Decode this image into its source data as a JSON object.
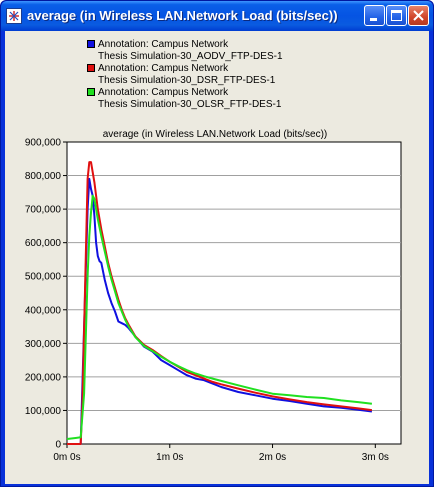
{
  "window": {
    "title": "average (in Wireless LAN.Network Load (bits/sec))",
    "buttons": {
      "minimize": "minimize-icon",
      "maximize": "maximize-icon",
      "close": "close-icon"
    }
  },
  "legend": [
    {
      "line1": "Annotation: Campus Network",
      "line2": "Thesis Simulation-30_AODV_FTP-DES-1",
      "color": "#1010e0"
    },
    {
      "line1": "Annotation: Campus Network",
      "line2": "Thesis Simulation-30_DSR_FTP-DES-1",
      "color": "#e01010"
    },
    {
      "line1": "Annotation: Campus Network",
      "line2": "Thesis Simulation-30_OLSR_FTP-DES-1",
      "color": "#20e020"
    }
  ],
  "chart_data": {
    "type": "line",
    "title": "average (in Wireless LAN.Network Load (bits/sec))",
    "xlabel": "",
    "ylabel": "",
    "xlim": [
      0,
      195
    ],
    "ylim": [
      0,
      900000
    ],
    "grid": true,
    "legend_position": "top",
    "yticks": [
      {
        "value": 0,
        "label": "0"
      },
      {
        "value": 100000,
        "label": "100,000"
      },
      {
        "value": 200000,
        "label": "200,000"
      },
      {
        "value": 300000,
        "label": "300,000"
      },
      {
        "value": 400000,
        "label": "400,000"
      },
      {
        "value": 500000,
        "label": "500,000"
      },
      {
        "value": 600000,
        "label": "600,000"
      },
      {
        "value": 700000,
        "label": "700,000"
      },
      {
        "value": 800000,
        "label": "800,000"
      },
      {
        "value": 900000,
        "label": "900,000"
      }
    ],
    "xticks": [
      {
        "value": 0,
        "label": "0m 0s"
      },
      {
        "value": 60,
        "label": "1m 0s"
      },
      {
        "value": 120,
        "label": "2m 0s"
      },
      {
        "value": 180,
        "label": "3m 0s"
      }
    ],
    "series": [
      {
        "color": "#1010e0",
        "x": [
          0,
          8,
          10,
          12,
          13,
          14,
          15,
          16,
          17,
          18,
          19,
          20,
          22,
          24,
          26,
          28,
          30,
          32,
          34,
          36,
          40,
          45,
          50,
          55,
          60,
          65,
          70,
          75,
          80,
          85,
          90,
          100,
          110,
          120,
          130,
          140,
          150,
          160,
          170,
          178
        ],
        "y": [
          0,
          0,
          350000,
          700000,
          790000,
          760000,
          740000,
          680000,
          600000,
          560000,
          545000,
          540000,
          490000,
          450000,
          420000,
          395000,
          365000,
          360000,
          355000,
          345000,
          320000,
          290000,
          275000,
          250000,
          235000,
          220000,
          205000,
          195000,
          190000,
          180000,
          170000,
          155000,
          145000,
          135000,
          128000,
          120000,
          112000,
          108000,
          102000,
          97000
        ]
      },
      {
        "color": "#e01010",
        "x": [
          0,
          8,
          9,
          11,
          12,
          13,
          14,
          15,
          16,
          17,
          18,
          20,
          22,
          24,
          26,
          28,
          30,
          32,
          34,
          36,
          40,
          45,
          50,
          55,
          60,
          65,
          70,
          75,
          80,
          85,
          90,
          100,
          110,
          120,
          130,
          140,
          150,
          160,
          170,
          178
        ],
        "y": [
          0,
          0,
          120000,
          560000,
          790000,
          840000,
          840000,
          810000,
          780000,
          740000,
          700000,
          640000,
          590000,
          540000,
          500000,
          465000,
          430000,
          400000,
          375000,
          355000,
          320000,
          295000,
          280000,
          262000,
          245000,
          230000,
          215000,
          205000,
          195000,
          185000,
          178000,
          165000,
          153000,
          142000,
          133000,
          125000,
          118000,
          112000,
          106000,
          101000
        ]
      },
      {
        "color": "#20e020",
        "x": [
          0,
          5,
          8,
          10,
          12,
          13,
          14,
          15,
          16,
          17,
          18,
          20,
          22,
          24,
          26,
          28,
          30,
          32,
          34,
          36,
          40,
          45,
          50,
          55,
          60,
          65,
          70,
          75,
          80,
          85,
          90,
          100,
          110,
          120,
          130,
          140,
          150,
          160,
          170,
          178
        ],
        "y": [
          15000,
          18000,
          20000,
          150000,
          500000,
          620000,
          690000,
          740000,
          730000,
          700000,
          670000,
          620000,
          575000,
          530000,
          490000,
          455000,
          420000,
          395000,
          370000,
          350000,
          318000,
          292000,
          277000,
          260000,
          245000,
          232000,
          220000,
          210000,
          202000,
          195000,
          188000,
          175000,
          162000,
          150000,
          145000,
          140000,
          137000,
          130000,
          125000,
          120000
        ]
      }
    ]
  }
}
